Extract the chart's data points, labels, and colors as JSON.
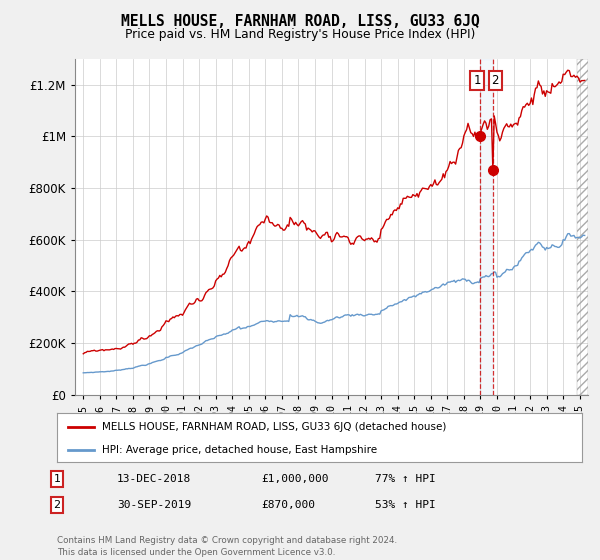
{
  "title": "MELLS HOUSE, FARNHAM ROAD, LISS, GU33 6JQ",
  "subtitle": "Price paid vs. HM Land Registry's House Price Index (HPI)",
  "legend_line1": "MELLS HOUSE, FARNHAM ROAD, LISS, GU33 6JQ (detached house)",
  "legend_line2": "HPI: Average price, detached house, East Hampshire",
  "footer": "Contains HM Land Registry data © Crown copyright and database right 2024.\nThis data is licensed under the Open Government Licence v3.0.",
  "sale1_date": 2018.95,
  "sale1_price": 1000000,
  "sale2_date": 2019.75,
  "sale2_price": 870000,
  "hpi_color": "#6699cc",
  "price_color": "#cc0000",
  "background_color": "#f0f0f0",
  "plot_bg_color": "#ffffff",
  "ylim": [
    0,
    1300000
  ],
  "xlim_start": 1994.5,
  "xlim_end": 2025.5
}
